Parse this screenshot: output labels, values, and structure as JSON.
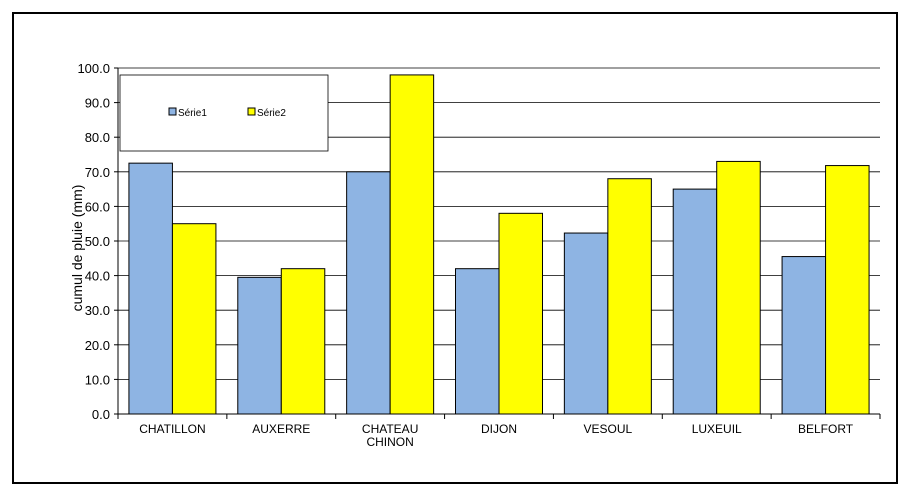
{
  "chart_data": {
    "type": "bar",
    "title": "",
    "xlabel": "",
    "ylabel": "cumul de pluie (mm)",
    "ylim": [
      0,
      100
    ],
    "yticks": [
      "0.0",
      "10.0",
      "20.0",
      "30.0",
      "40.0",
      "50.0",
      "60.0",
      "70.0",
      "80.0",
      "90.0",
      "100.0"
    ],
    "categories": [
      "CHATILLON",
      "AUXERRE",
      "CHATEAU CHINON",
      "DIJON",
      "VESOUL",
      "LUXEUIL",
      "BELFORT"
    ],
    "category_lines": [
      [
        "CHATILLON"
      ],
      [
        "AUXERRE"
      ],
      [
        "CHATEAU",
        "CHINON"
      ],
      [
        "DIJON"
      ],
      [
        "VESOUL"
      ],
      [
        "LUXEUIL"
      ],
      [
        "BELFORT"
      ]
    ],
    "series": [
      {
        "name": "Série1",
        "color": "#8EB4E3",
        "values": [
          72.5,
          39.5,
          70.0,
          42.0,
          52.3,
          65.0,
          45.5
        ]
      },
      {
        "name": "Série2",
        "color": "#FFFF00",
        "values": [
          55.0,
          42.0,
          98.0,
          58.0,
          68.0,
          73.0,
          71.8
        ]
      }
    ],
    "grid": true,
    "legend_position": "top-left"
  }
}
